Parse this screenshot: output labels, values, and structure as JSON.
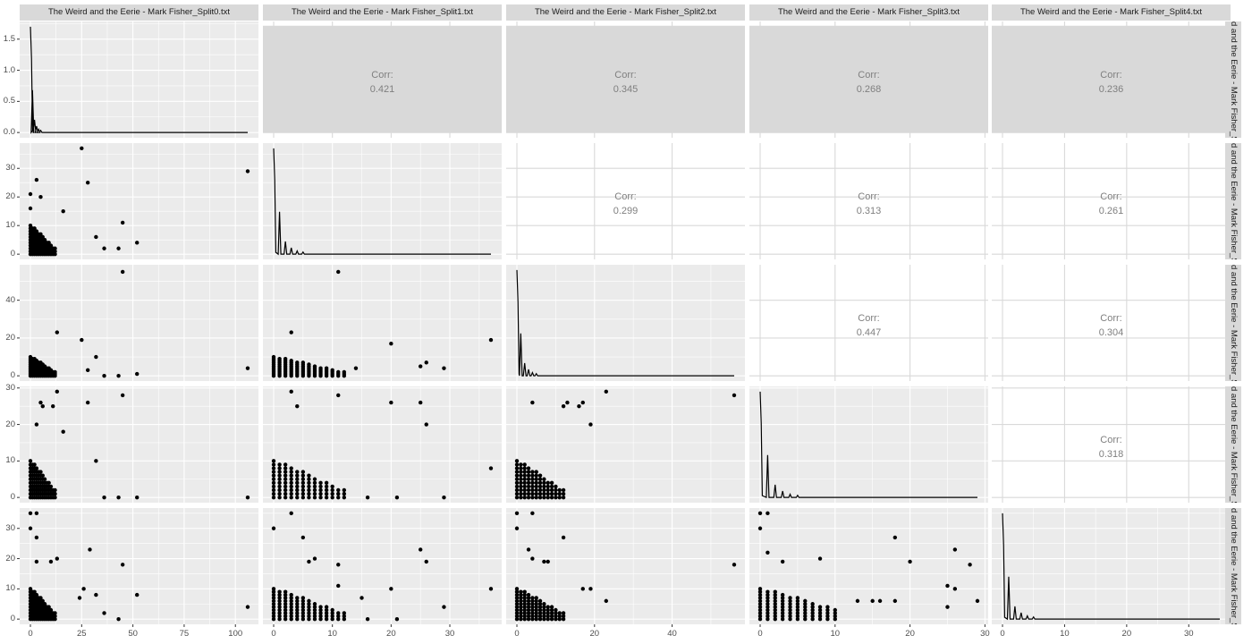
{
  "figure": {
    "type": "ggpairs scatterplot matrix",
    "variables": [
      "The Weird and the Eerie - Mark Fisher_Split0.txt",
      "The Weird and the Eerie - Mark Fisher_Split1.txt",
      "The Weird and the Eerie - Mark Fisher_Split2.txt",
      "The Weird and the Eerie - Mark Fisher_Split3.txt",
      "The Weird and the Eerie - Mark Fisher_Split4.txt"
    ],
    "right_strip_labels": [
      "d and the Eerie - Mark Fisher_S",
      "d and the Eerie - Mark Fisher_S",
      "d and the Eerie - Mark Fisher_S",
      "d and the Eerie - Mark Fisher_S",
      "d and the Eerie - Mark Fisher_S"
    ],
    "corr_label": "Corr:",
    "colors": {
      "panel_bg": "#ebebeb",
      "grid": "#ffffff",
      "strip_bg": "#d9d9d9",
      "corr_text": "#7f7f7f",
      "corr_grid": "#d9d9d9",
      "points": "#000000"
    }
  },
  "chart_data": {
    "type": "scatter",
    "title": "",
    "layout": "5x5 pairs matrix: diagonal = density, lower = scatter, upper = correlation",
    "variables": [
      "Split0",
      "Split1",
      "Split2",
      "Split3",
      "Split4"
    ],
    "axis_ranges": {
      "Split0": [
        0,
        106
      ],
      "Split1": [
        0,
        37
      ],
      "Split2": [
        0,
        56
      ],
      "Split3": [
        0,
        29
      ],
      "Split4": [
        0,
        35
      ]
    },
    "x_ticks": {
      "Split0": [
        0,
        25,
        50,
        75,
        100
      ],
      "Split1": [
        0,
        10,
        20,
        30
      ],
      "Split2": [
        0,
        20,
        40
      ],
      "Split3": [
        0,
        10,
        20,
        30
      ],
      "Split4": [
        0,
        10,
        20,
        30
      ]
    },
    "y_ticks": {
      "row0": [
        "0.0",
        "0.5",
        "1.0",
        "1.5"
      ],
      "row1": [
        0,
        10,
        20,
        30
      ],
      "row2": [
        0,
        20,
        40
      ],
      "row3": [
        0,
        10,
        20,
        30
      ],
      "row4": [
        0,
        10,
        20,
        30
      ]
    },
    "density_peak_row0": 1.7,
    "correlations": [
      {
        "pair": [
          "Split0",
          "Split1"
        ],
        "value": "0.421"
      },
      {
        "pair": [
          "Split0",
          "Split2"
        ],
        "value": "0.345"
      },
      {
        "pair": [
          "Split0",
          "Split3"
        ],
        "value": "0.268"
      },
      {
        "pair": [
          "Split0",
          "Split4"
        ],
        "value": "0.236"
      },
      {
        "pair": [
          "Split1",
          "Split2"
        ],
        "value": "0.299"
      },
      {
        "pair": [
          "Split1",
          "Split3"
        ],
        "value": "0.313"
      },
      {
        "pair": [
          "Split1",
          "Split4"
        ],
        "value": "0.261"
      },
      {
        "pair": [
          "Split2",
          "Split3"
        ],
        "value": "0.447"
      },
      {
        "pair": [
          "Split2",
          "Split4"
        ],
        "value": "0.304"
      },
      {
        "pair": [
          "Split3",
          "Split4"
        ],
        "value": "0.318"
      }
    ],
    "scatter_outliers": {
      "Split0_vs_Split1": [
        [
          0,
          21
        ],
        [
          3,
          26
        ],
        [
          5,
          20
        ],
        [
          0,
          16
        ],
        [
          25,
          37
        ],
        [
          28,
          25
        ],
        [
          106,
          29
        ],
        [
          52,
          4
        ],
        [
          45,
          11
        ],
        [
          32,
          6
        ],
        [
          36,
          2
        ],
        [
          43,
          2
        ],
        [
          16,
          15
        ]
      ],
      "Split0_vs_Split2": [
        [
          45,
          55
        ],
        [
          106,
          4
        ],
        [
          13,
          23
        ],
        [
          25,
          19
        ],
        [
          32,
          10
        ],
        [
          28,
          3
        ],
        [
          52,
          1
        ],
        [
          36,
          0
        ],
        [
          43,
          0
        ]
      ],
      "Split1_vs_Split2": [
        [
          11,
          55
        ],
        [
          37,
          19
        ],
        [
          20,
          17
        ],
        [
          26,
          7
        ],
        [
          25,
          5
        ],
        [
          29,
          4
        ],
        [
          14,
          4
        ],
        [
          3,
          23
        ]
      ],
      "Split0_vs_Split3": [
        [
          13,
          29
        ],
        [
          45,
          28
        ],
        [
          5,
          26
        ],
        [
          6,
          25
        ],
        [
          11,
          25
        ],
        [
          28,
          26
        ],
        [
          3,
          20
        ],
        [
          16,
          18
        ],
        [
          32,
          10
        ],
        [
          106,
          0
        ],
        [
          52,
          0
        ],
        [
          43,
          0
        ],
        [
          36,
          0
        ]
      ],
      "Split1_vs_Split3": [
        [
          3,
          29
        ],
        [
          11,
          28
        ],
        [
          4,
          25
        ],
        [
          20,
          26
        ],
        [
          26,
          20
        ],
        [
          25,
          26
        ],
        [
          37,
          8
        ],
        [
          29,
          0
        ],
        [
          16,
          0
        ],
        [
          21,
          0
        ]
      ],
      "Split2_vs_Split3": [
        [
          23,
          29
        ],
        [
          56,
          28
        ],
        [
          4,
          26
        ],
        [
          13,
          26
        ],
        [
          17,
          26
        ],
        [
          19,
          20
        ],
        [
          16,
          25
        ],
        [
          12,
          25
        ]
      ],
      "Split0_vs_Split4": [
        [
          0,
          35
        ],
        [
          3,
          35
        ],
        [
          0,
          30
        ],
        [
          3,
          27
        ],
        [
          29,
          23
        ],
        [
          13,
          20
        ],
        [
          10,
          19
        ],
        [
          45,
          18
        ],
        [
          3,
          19
        ],
        [
          106,
          4
        ],
        [
          52,
          8
        ],
        [
          32,
          8
        ],
        [
          26,
          10
        ],
        [
          24,
          7
        ],
        [
          36,
          2
        ],
        [
          43,
          0
        ]
      ],
      "Split1_vs_Split4": [
        [
          3,
          35
        ],
        [
          0,
          30
        ],
        [
          5,
          27
        ],
        [
          25,
          23
        ],
        [
          26,
          19
        ],
        [
          7,
          20
        ],
        [
          6,
          19
        ],
        [
          11,
          18
        ],
        [
          20,
          10
        ],
        [
          37,
          10
        ],
        [
          29,
          4
        ],
        [
          21,
          0
        ],
        [
          16,
          0
        ],
        [
          11,
          11
        ],
        [
          15,
          7
        ]
      ],
      "Split2_vs_Split4": [
        [
          0,
          35
        ],
        [
          4,
          35
        ],
        [
          0,
          30
        ],
        [
          12,
          27
        ],
        [
          3,
          23
        ],
        [
          4,
          20
        ],
        [
          7,
          19
        ],
        [
          8,
          19
        ],
        [
          56,
          18
        ],
        [
          23,
          6
        ],
        [
          17,
          10
        ],
        [
          19,
          10
        ]
      ],
      "Split3_vs_Split4": [
        [
          0,
          35
        ],
        [
          1,
          35
        ],
        [
          0,
          30
        ],
        [
          18,
          27
        ],
        [
          26,
          23
        ],
        [
          1,
          22
        ],
        [
          3,
          19
        ],
        [
          8,
          20
        ],
        [
          20,
          19
        ],
        [
          28,
          18
        ],
        [
          25,
          11
        ],
        [
          26,
          10
        ],
        [
          18,
          6
        ],
        [
          29,
          6
        ],
        [
          25,
          4
        ],
        [
          13,
          6
        ],
        [
          15,
          6
        ],
        [
          16,
          6
        ]
      ]
    }
  }
}
